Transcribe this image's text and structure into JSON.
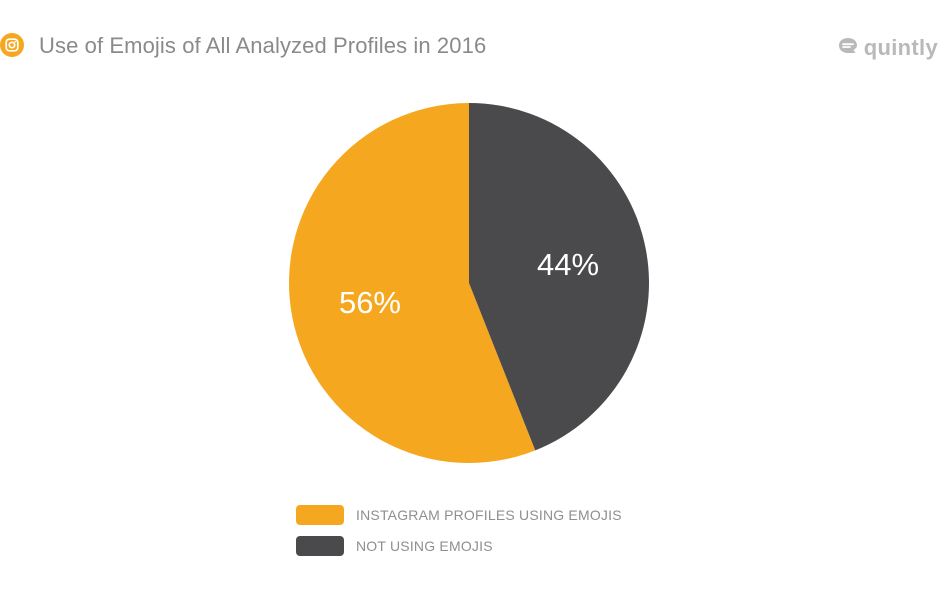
{
  "header": {
    "title": "Use of Emojis of All Analyzed Profiles in 2016",
    "platform_icon": "instagram-icon",
    "brand": "quintly",
    "brand_icon": "quintly-logo-icon"
  },
  "colors": {
    "accent": "#F5A81F",
    "dark": "#4A4A4C",
    "title": "#8A8A8A",
    "brand": "#B9B9B9",
    "legend_text": "#8F8F8F"
  },
  "chart_data": {
    "type": "pie",
    "title": "Use of Emojis of All Analyzed Profiles in 2016",
    "slices": [
      {
        "label": "INSTAGRAM PROFILES USING EMOJIS",
        "value": 56,
        "display": "56%",
        "color": "#F5A81F"
      },
      {
        "label": "NOT USING EMOJIS",
        "value": 44,
        "display": "44%",
        "color": "#4A4A4C"
      }
    ],
    "legend_placement": "bottom",
    "start_angle": "12 o'clock",
    "direction": "counterclockwise for first slice"
  },
  "legend": {
    "items": [
      {
        "label": "INSTAGRAM PROFILES USING EMOJIS",
        "color": "#F5A81F"
      },
      {
        "label": "NOT USING EMOJIS",
        "color": "#4A4A4C"
      }
    ]
  }
}
